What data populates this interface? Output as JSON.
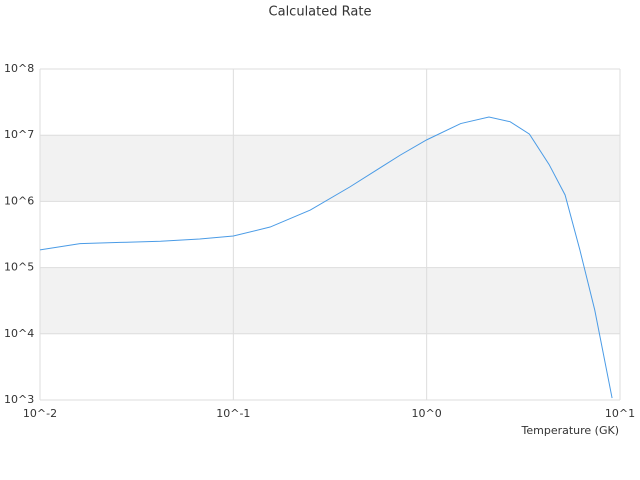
{
  "chart_data": {
    "type": "line",
    "title": "Calculated Rate",
    "x_label": "Temperature (GK)",
    "x": [
      0.01,
      0.0161,
      0.026,
      0.042,
      0.067,
      0.1,
      0.155,
      0.25,
      0.4,
      0.73,
      1.0,
      1.5,
      2.1,
      2.7,
      3.4,
      4.3,
      5.2,
      6.2,
      7.4,
      9.1
    ],
    "series": [
      {
        "color": "#4a9be6",
        "values": [
          185000,
          230000,
          240000,
          250000,
          270000,
          300000,
          410000,
          740000,
          1650000,
          5000000,
          8500000,
          15000000,
          18800000,
          16000000,
          10400000,
          3600000,
          1250000,
          185000,
          23000,
          1070
        ]
      }
    ],
    "xlim": [
      0.01,
      10
    ],
    "ylim": [
      1000,
      100000000
    ],
    "x_log": true,
    "y_log": true,
    "xticks": [
      {
        "value": 0.01,
        "label": "10^-2"
      },
      {
        "value": 0.1,
        "label": "10^-1"
      },
      {
        "value": 1,
        "label": "10^0"
      },
      {
        "value": 10,
        "label": "10^1"
      }
    ],
    "yticks": [
      {
        "value": 1000,
        "label": "10^3"
      },
      {
        "value": 10000,
        "label": "10^4"
      },
      {
        "value": 100000,
        "label": "10^5"
      },
      {
        "value": 1000000,
        "label": "10^6"
      },
      {
        "value": 10000000,
        "label": "10^7"
      },
      {
        "value": 100000000,
        "label": "10^8"
      }
    ],
    "bands": true
  }
}
